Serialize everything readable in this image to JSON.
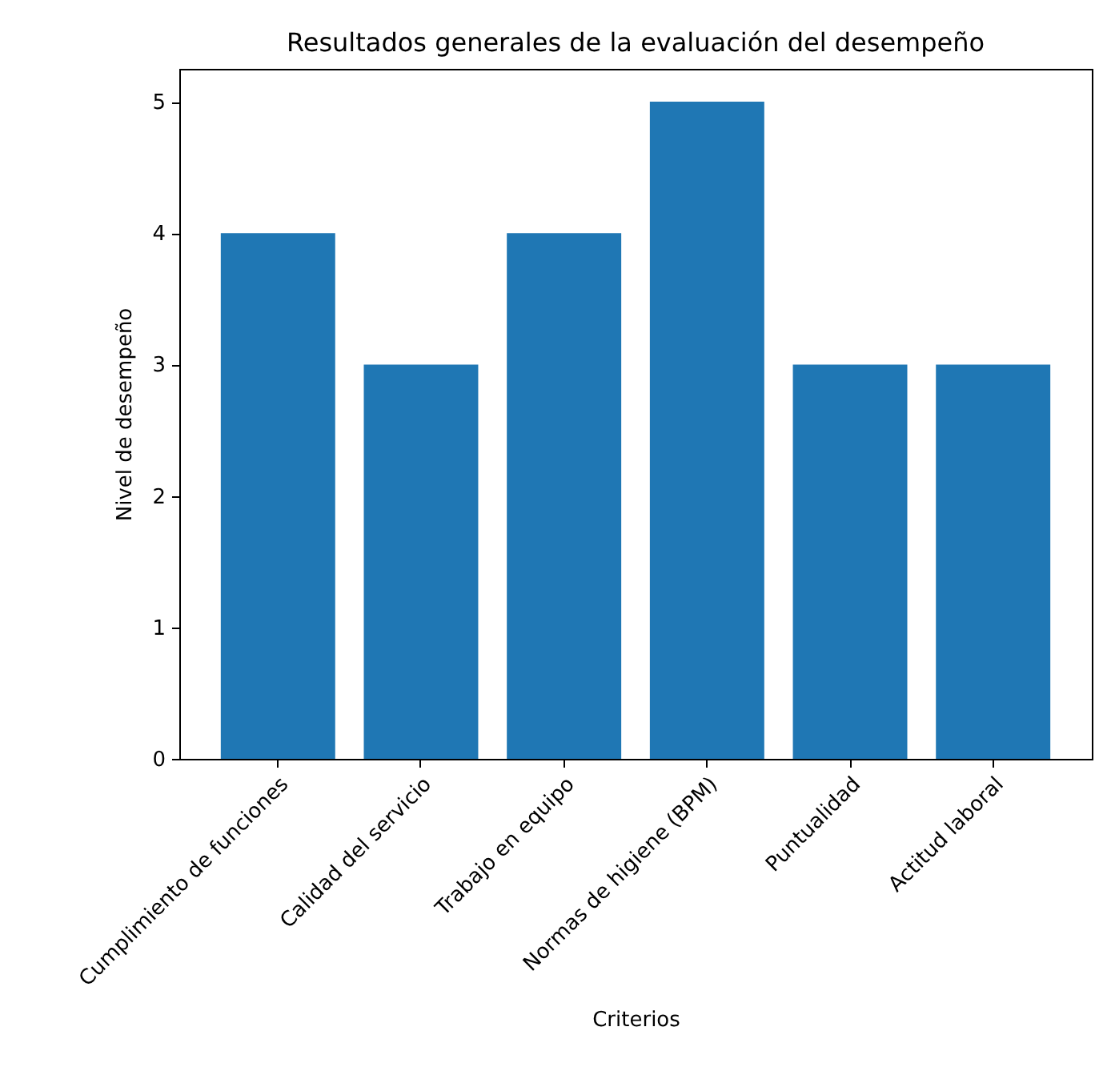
{
  "chart_data": {
    "type": "bar",
    "title": "Resultados generales de la evaluación del desempeño",
    "xlabel": "Criterios",
    "ylabel": "Nivel de desempeño",
    "categories": [
      "Cumplimiento de funciones",
      "Calidad del servicio",
      "Trabajo en equipo",
      "Normas de higiene (BPM)",
      "Puntualidad",
      "Actitud laboral"
    ],
    "values": [
      4,
      3,
      4,
      5,
      3,
      3
    ],
    "color": "#1f77b4",
    "ylim": [
      0,
      5.25
    ],
    "yticks": [
      0,
      1,
      2,
      3,
      4,
      5
    ],
    "grid": false
  }
}
